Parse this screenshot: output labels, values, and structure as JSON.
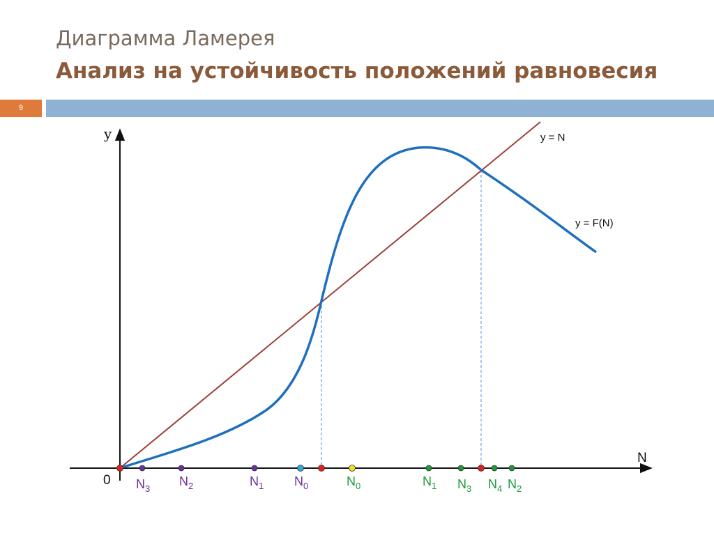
{
  "slide": {
    "subtitle": "Диаграмма Ламерея",
    "title": "Анализ на устойчивость положений равновесия",
    "number": "9"
  },
  "diagram": {
    "axis_y_label": "y",
    "axis_x_label": "N",
    "origin_label": "0",
    "line_label": "y = N",
    "curve_label": "y = F(N)",
    "colors": {
      "curve": "#1f6fbf",
      "line": "#9a3f3a",
      "axis": "#111111",
      "dashed": "#5a8fd8",
      "purple": "#6a2fa0",
      "green": "#1e9a3a",
      "red": "#e02020",
      "cyan": "#31a9e0",
      "yellow": "#f0e020"
    },
    "points": [
      {
        "base": "N",
        "sub": "3",
        "color": "purple"
      },
      {
        "base": "N",
        "sub": "2",
        "color": "purple"
      },
      {
        "base": "N",
        "sub": "1",
        "color": "purple"
      },
      {
        "base": "N",
        "sub": "0",
        "color": "purple"
      },
      {
        "base": "N",
        "sub": "0",
        "color": "green"
      },
      {
        "base": "N",
        "sub": "1",
        "color": "green"
      },
      {
        "base": "N",
        "sub": "3",
        "color": "green"
      },
      {
        "base": "N",
        "sub": "4",
        "color": "green"
      },
      {
        "base": "N",
        "sub": "2",
        "color": "green"
      }
    ]
  }
}
